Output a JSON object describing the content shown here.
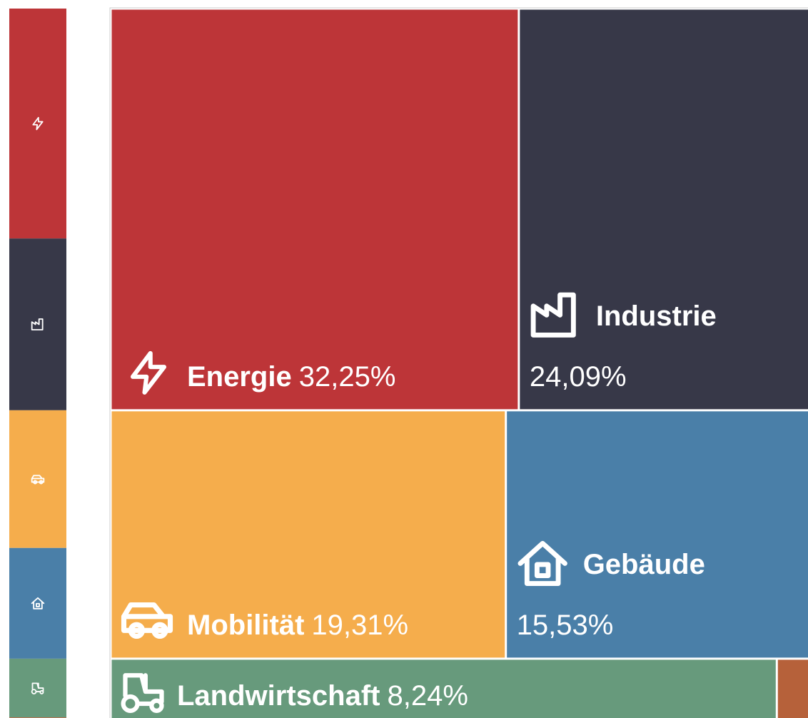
{
  "chart_data": {
    "type": "treemap",
    "categories": [
      "Energie",
      "Industrie",
      "Mobilität",
      "Gebäude",
      "Landwirtschaft",
      null
    ],
    "values": [
      32.25,
      24.09,
      19.31,
      15.53,
      8.24,
      0.58
    ],
    "value_labels": [
      "32,25%",
      "24,09%",
      "19,31%",
      "15,53%",
      "8,24%",
      null
    ],
    "colors": [
      "#bd3538",
      "#373848",
      "#f5ad4c",
      "#4a7fa8",
      "#679a7c",
      "#b6613a"
    ]
  }
}
